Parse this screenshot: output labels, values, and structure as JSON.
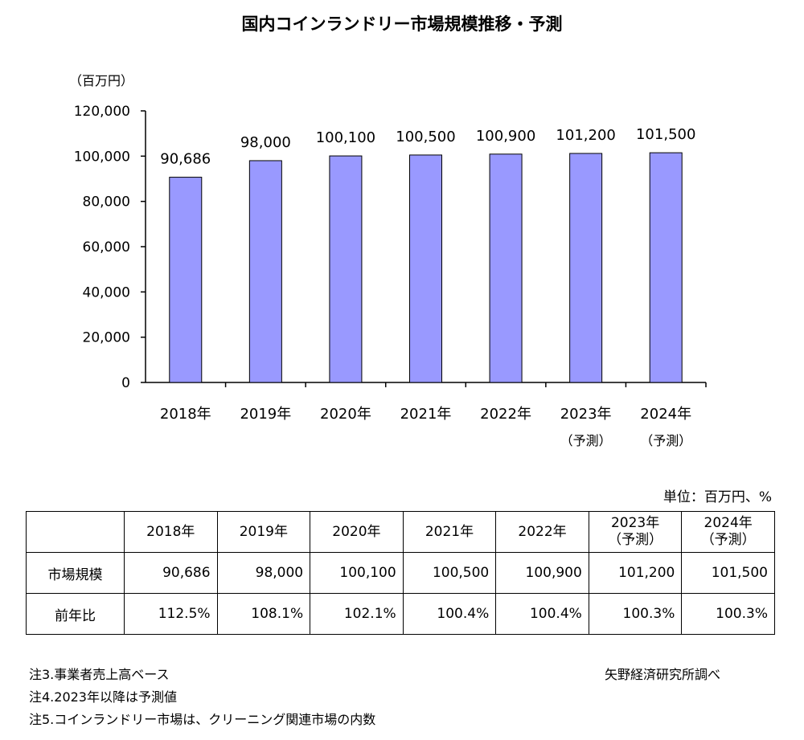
{
  "chart_data": {
    "type": "bar",
    "title": "国内コインランドリー市場規模推移・予測",
    "ylabel": "（百万円）",
    "xlabel": "",
    "ylim": [
      0,
      120000
    ],
    "yticks": [
      "0",
      "20,000",
      "40,000",
      "60,000",
      "80,000",
      "100,000",
      "120,000"
    ],
    "categories": [
      {
        "year": "2018年",
        "sub": ""
      },
      {
        "year": "2019年",
        "sub": ""
      },
      {
        "year": "2020年",
        "sub": ""
      },
      {
        "year": "2021年",
        "sub": ""
      },
      {
        "year": "2022年",
        "sub": ""
      },
      {
        "year": "2023年",
        "sub": "（予測）"
      },
      {
        "year": "2024年",
        "sub": "（予測）"
      }
    ],
    "values": [
      90686,
      98000,
      100100,
      100500,
      100900,
      101200,
      101500
    ],
    "value_labels": [
      "90,686",
      "98,000",
      "100,100",
      "100,500",
      "100,900",
      "101,200",
      "101,500"
    ],
    "bar_color": "#9999ff",
    "grid": false
  },
  "table": {
    "unit": "単位：百万円、%",
    "headers": [
      {
        "year": "2018年",
        "sub": ""
      },
      {
        "year": "2019年",
        "sub": ""
      },
      {
        "year": "2020年",
        "sub": ""
      },
      {
        "year": "2021年",
        "sub": ""
      },
      {
        "year": "2022年",
        "sub": ""
      },
      {
        "year": "2023年",
        "sub": "（予測）"
      },
      {
        "year": "2024年",
        "sub": "（予測）"
      }
    ],
    "rows": [
      {
        "label": "市場規模",
        "values": [
          "90,686",
          "98,000",
          "100,100",
          "100,500",
          "100,900",
          "101,200",
          "101,500"
        ]
      },
      {
        "label": "前年比",
        "values": [
          "112.5%",
          "108.1%",
          "102.1%",
          "100.4%",
          "100.4%",
          "100.3%",
          "100.3%"
        ]
      }
    ]
  },
  "notes": [
    "注3.事業者売上高ベース",
    "注4.2023年以降は予測値",
    "注5.コインランドリー市場は、クリーニング関連市場の内数"
  ],
  "source": "矢野経済研究所調べ"
}
